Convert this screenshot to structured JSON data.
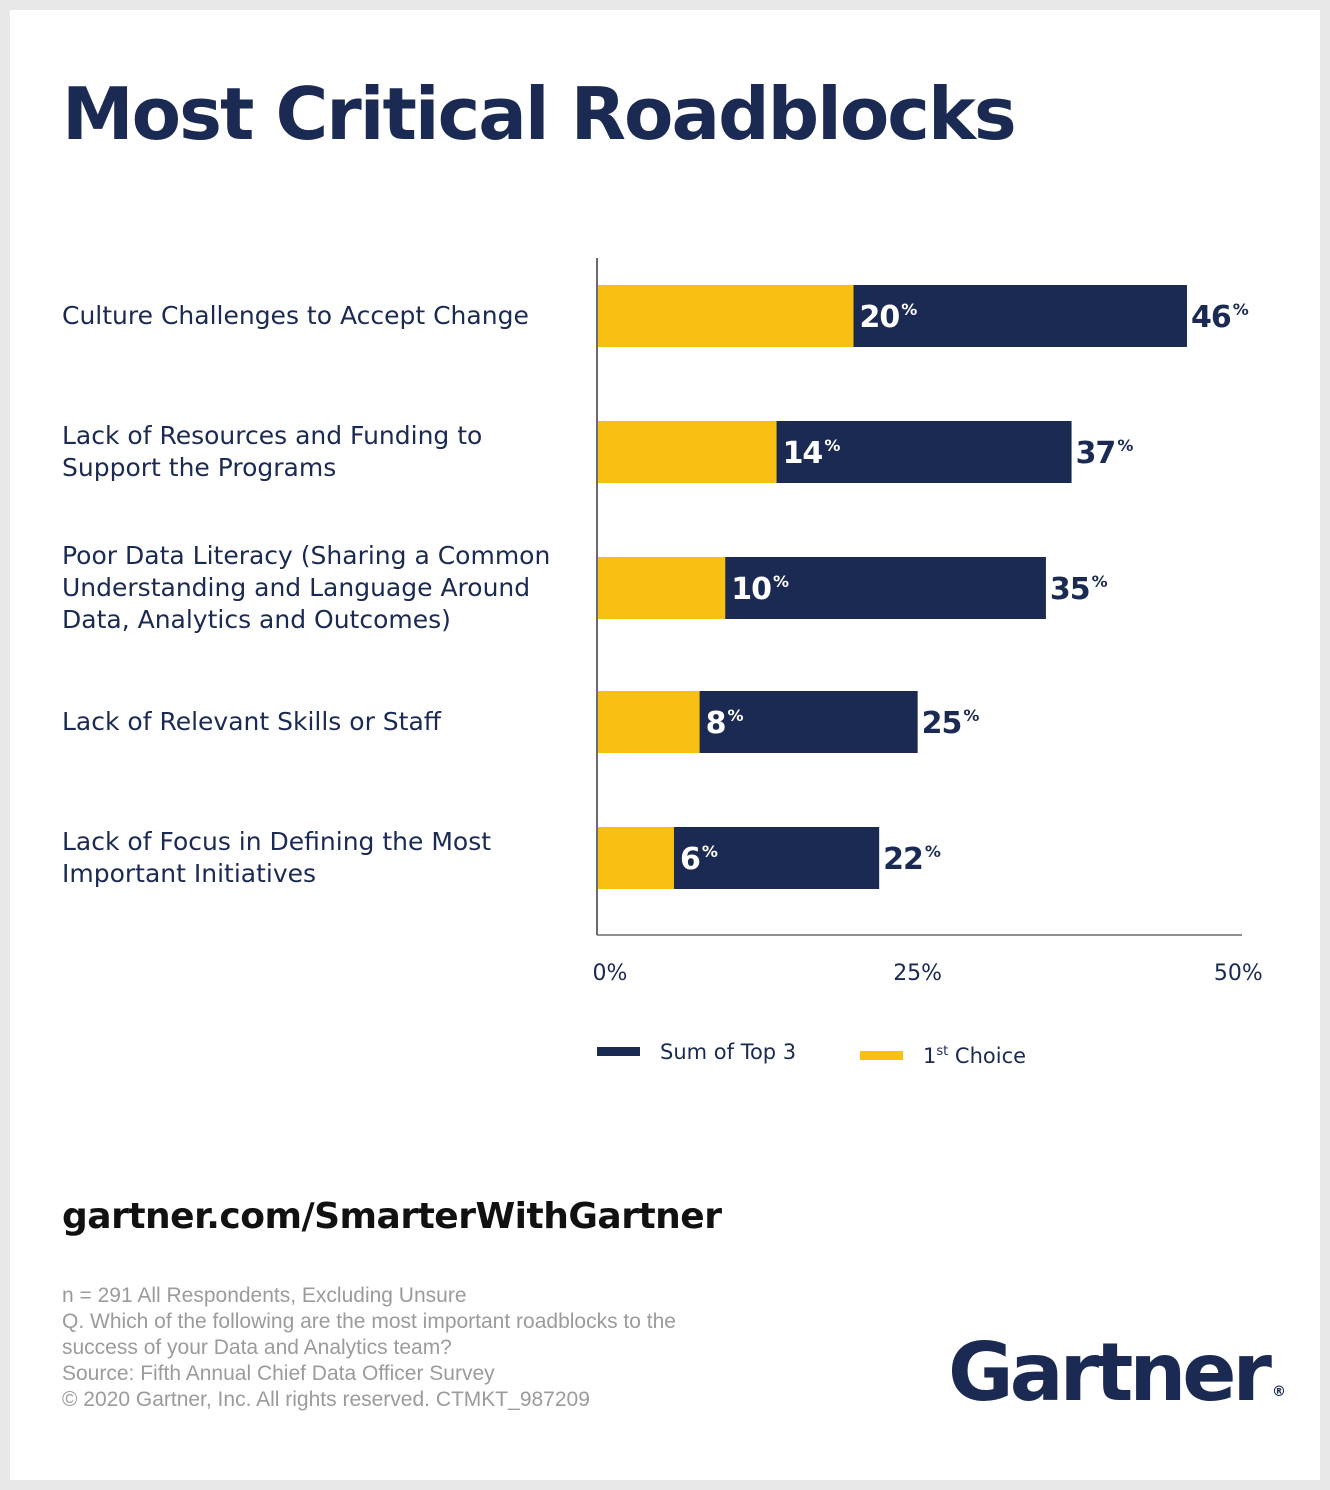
{
  "title": "Most Critical Roadblocks",
  "chart_data": {
    "type": "bar",
    "orientation": "horizontal",
    "categories": [
      "Culture Challenges to Accept Change",
      "Lack of Resources and Funding to Support the Programs",
      "Poor Data Literacy (Sharing a Common Understanding and Language Around Data, Analytics and Outcomes)",
      "Lack of Relevant Skills or Staff",
      "Lack of Focus in Defining the Most Important Initiatives"
    ],
    "category_lines": [
      [
        "Culture Challenges to Accept Change"
      ],
      [
        "Lack of Resources and Funding to",
        "Support the Programs"
      ],
      [
        "Poor Data Literacy (Sharing a Common",
        "Understanding and Language Around",
        "Data, Analytics and Outcomes)"
      ],
      [
        "Lack of Relevant Skills or Staff"
      ],
      [
        "Lack of Focus in Defining the Most",
        "Important Initiatives"
      ]
    ],
    "series": [
      {
        "name": "Sum of Top 3",
        "values": [
          46,
          37,
          35,
          25,
          22
        ],
        "color": "#1b2a52"
      },
      {
        "name": "1st Choice",
        "values": [
          20,
          14,
          10,
          8,
          6
        ],
        "color": "#f8c012"
      }
    ],
    "value_suffix": "%",
    "xlim": [
      0,
      50
    ],
    "x_ticks": [
      "0%",
      "25%",
      "50%"
    ],
    "legend_position": "bottom",
    "legend": [
      {
        "label_main": "Sum of Top 3",
        "label_sup": "",
        "label_rest": "",
        "color": "#1b2a52"
      },
      {
        "label_main": "1",
        "label_sup": "st",
        "label_rest": " Choice",
        "color": "#f8c012"
      }
    ]
  },
  "footer": {
    "url": "gartner.com/SmarterWithGartner",
    "notes": [
      "n = 291 All Respondents, Excluding Unsure",
      "Q. Which of the following are the most important roadblocks to the",
      "success of your Data and Analytics team?",
      "Source: Fifth Annual Chief Data Officer Survey",
      "© 2020 Gartner, Inc. All rights reserved. CTMKT_987209"
    ],
    "logo": "Gartner",
    "logo_mark": "®"
  }
}
